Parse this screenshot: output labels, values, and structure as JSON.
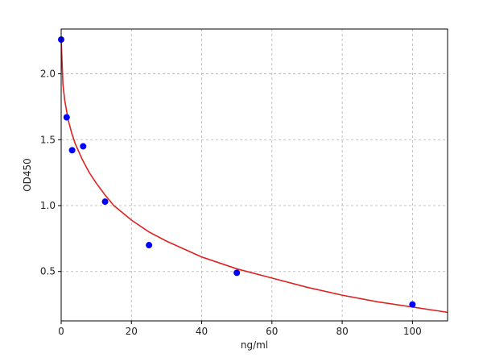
{
  "chart_data": {
    "type": "scatter",
    "title": "",
    "xlabel": "ng/ml",
    "ylabel": "OD450",
    "xlim": [
      0,
      110
    ],
    "ylim": [
      0.125,
      2.34
    ],
    "xticks": [
      0,
      20,
      40,
      60,
      80,
      100
    ],
    "yticks": [
      0.5,
      1.0,
      1.5,
      2.0
    ],
    "xtick_labels": [
      "0",
      "20",
      "40",
      "60",
      "80",
      "100"
    ],
    "ytick_labels": [
      "0.5",
      "1.0",
      "1.5",
      "2.0"
    ],
    "grid": true,
    "points": {
      "x": [
        0,
        1.56,
        3.12,
        6.25,
        12.5,
        25,
        50,
        100
      ],
      "y": [
        2.26,
        1.67,
        1.42,
        1.45,
        1.03,
        0.7,
        0.49,
        0.25
      ],
      "color": "#0000ff"
    },
    "fit_curve": {
      "x": [
        0,
        0.5,
        1,
        2,
        3,
        4,
        6,
        8,
        10,
        12.5,
        15,
        20,
        25,
        30,
        40,
        50,
        60,
        70,
        80,
        90,
        100,
        110
      ],
      "y": [
        2.26,
        1.92,
        1.8,
        1.65,
        1.55,
        1.47,
        1.35,
        1.25,
        1.17,
        1.08,
        1.0,
        0.89,
        0.8,
        0.73,
        0.61,
        0.52,
        0.45,
        0.38,
        0.32,
        0.27,
        0.23,
        0.19
      ],
      "color": "#dd2222"
    }
  }
}
